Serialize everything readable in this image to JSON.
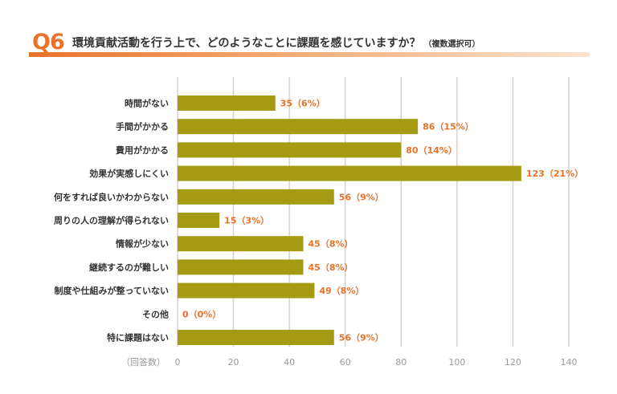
{
  "header": {
    "q_number": "Q6",
    "title": "環境貢献活動を行う上で、どのようなことに課題を感じていますか？",
    "note": "（複数選択可）"
  },
  "colors": {
    "bar": "#a49b12",
    "label": "#e8722a",
    "grid": "#d9d1c8",
    "axis_text": "#999999",
    "category_text": "#333333"
  },
  "chart_data": {
    "type": "bar",
    "orientation": "horizontal",
    "title": "環境貢献活動を行う上で、どのようなことに課題を感じていますか？",
    "xlabel": "（回答数）",
    "ylabel": "",
    "xlim": [
      0,
      140
    ],
    "ticks": [
      0,
      20,
      40,
      60,
      80,
      100,
      120,
      140
    ],
    "grid": true,
    "categories": [
      "時間がない",
      "手間がかかる",
      "費用がかかる",
      "効果が実感しにくい",
      "何をすれば良いかわからない",
      "周りの人の理解が得られない",
      "情報が少ない",
      "継続するのが難しい",
      "制度や仕組みが整っていない",
      "その他",
      "特に課題はない"
    ],
    "values": [
      35,
      86,
      80,
      123,
      56,
      15,
      45,
      45,
      49,
      0,
      56
    ],
    "data_labels": [
      "35（6%）",
      "86（15%）",
      "80（14%）",
      "123（21%）",
      "56（9%）",
      "15（3%）",
      "45（8%）",
      "45（8%）",
      "49（8%）",
      "0（0%）",
      "56（9%）"
    ]
  }
}
